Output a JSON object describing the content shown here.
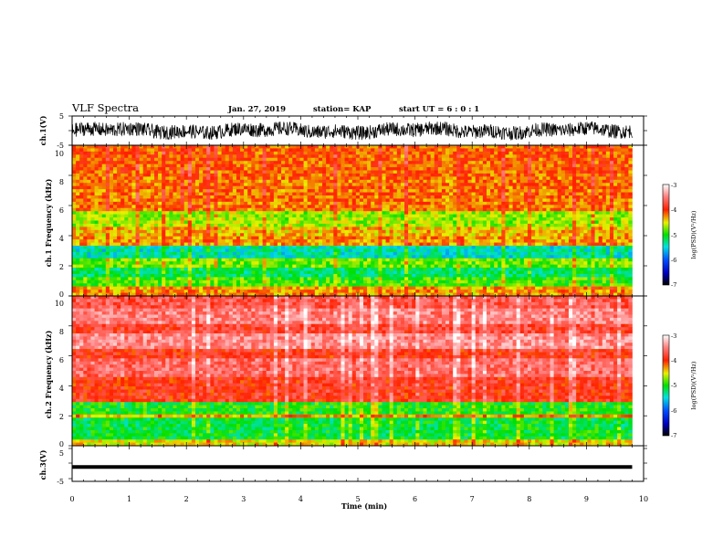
{
  "header": {
    "title": "VLF Spectra",
    "date": "Jan. 27, 2019",
    "station": "station= KAP",
    "start": "start  UT =   6 : 0  : 1"
  },
  "chart_data": [
    {
      "type": "line",
      "panel": "ch1_waveform",
      "ylabel": "ch.1(V)",
      "ylim": [
        -5,
        5
      ],
      "yticks": [
        "5",
        "-5"
      ],
      "xlim": [
        0,
        10
      ],
      "series": [
        {
          "values_description_mean": 0,
          "values_description_amp": 2.6,
          "values": []
        }
      ],
      "color": "#000000"
    },
    {
      "type": "heatmap",
      "panel": "ch1_spectrogram",
      "ylabel": "ch.1 Frequency  (kHz)",
      "ylim": [
        0,
        10
      ],
      "yticks": [
        "0",
        "2",
        "4",
        "6",
        "8",
        "10"
      ],
      "xlim": [
        0,
        9.8
      ],
      "colorbar": {
        "label": "log(PSD)(V²/Hz)",
        "range": [
          -7,
          -3
        ],
        "ticks": [
          "-3",
          "-4",
          "-5",
          "-6",
          "-7"
        ]
      },
      "bands": [
        {
          "from": 0.0,
          "to": 0.6,
          "level": -4.3
        },
        {
          "from": 0.6,
          "to": 1.2,
          "level": -4.9
        },
        {
          "from": 1.2,
          "to": 1.8,
          "level": -5.2
        },
        {
          "from": 1.8,
          "to": 2.4,
          "level": -4.8
        },
        {
          "from": 2.4,
          "to": 3.4,
          "level": -5.4
        },
        {
          "from": 3.4,
          "to": 4.0,
          "level": -4.3
        },
        {
          "from": 4.0,
          "to": 4.6,
          "level": -4.4
        },
        {
          "from": 4.6,
          "to": 5.6,
          "level": -4.7
        },
        {
          "from": 5.6,
          "to": 8.0,
          "level": -4.2
        },
        {
          "from": 8.0,
          "to": 10.0,
          "level": -4.15
        }
      ]
    },
    {
      "type": "heatmap",
      "panel": "ch2_spectrogram",
      "ylabel": "ch.2 Frequency  (kHz)",
      "ylim": [
        0,
        10
      ],
      "yticks": [
        "0",
        "2",
        "4",
        "6",
        "8",
        "10"
      ],
      "xlim": [
        0,
        9.8
      ],
      "colorbar": {
        "label": "log(PSD)(V²/Hz)",
        "range": [
          -7,
          -3
        ],
        "ticks": [
          "-3",
          "-4",
          "-5",
          "-6",
          "-7"
        ]
      },
      "bands": [
        {
          "from": 0.0,
          "to": 0.5,
          "level": -4.5
        },
        {
          "from": 0.5,
          "to": 1.9,
          "level": -5.1
        },
        {
          "from": 1.9,
          "to": 2.1,
          "level": -4.3
        },
        {
          "from": 2.1,
          "to": 3.0,
          "level": -5.0
        },
        {
          "from": 3.0,
          "to": 4.5,
          "level": -3.9
        },
        {
          "from": 4.5,
          "to": 5.8,
          "level": -3.6
        },
        {
          "from": 5.8,
          "to": 6.4,
          "level": -3.9
        },
        {
          "from": 6.4,
          "to": 7.6,
          "level": -3.45
        },
        {
          "from": 7.6,
          "to": 8.2,
          "level": -3.8
        },
        {
          "from": 8.2,
          "to": 9.2,
          "level": -3.5
        },
        {
          "from": 9.2,
          "to": 10.0,
          "level": -3.7
        }
      ]
    },
    {
      "type": "line",
      "panel": "ch3_waveform",
      "ylabel": "ch.3(V)",
      "ylim": [
        -5,
        5
      ],
      "yticks": [
        "5",
        "-5"
      ],
      "xlim": [
        0,
        10
      ],
      "xlabel": "Time  (min)",
      "xticks": [
        "0",
        "1",
        "2",
        "3",
        "4",
        "5",
        "6",
        "7",
        "8",
        "9",
        "10"
      ],
      "series": [
        {
          "values_description_mean": -1.0,
          "values": []
        }
      ],
      "color": "#000000"
    }
  ]
}
